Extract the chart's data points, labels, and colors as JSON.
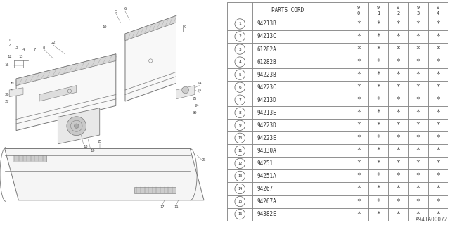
{
  "diagram_label": "A941A00072",
  "bg_color": "#ffffff",
  "rows": [
    [
      "1",
      "94213B"
    ],
    [
      "2",
      "94213C"
    ],
    [
      "3",
      "61282A"
    ],
    [
      "4",
      "61282B"
    ],
    [
      "5",
      "94223B"
    ],
    [
      "6",
      "94223C"
    ],
    [
      "7",
      "94213D"
    ],
    [
      "8",
      "94213E"
    ],
    [
      "9",
      "94223D"
    ],
    [
      "10",
      "94223E"
    ],
    [
      "11",
      "94330A"
    ],
    [
      "12",
      "94251"
    ],
    [
      "13",
      "94251A"
    ],
    [
      "14",
      "94267"
    ],
    [
      "15",
      "94267A"
    ],
    [
      "16",
      "94382E"
    ]
  ],
  "line_color": "#777777",
  "text_color": "#444444"
}
